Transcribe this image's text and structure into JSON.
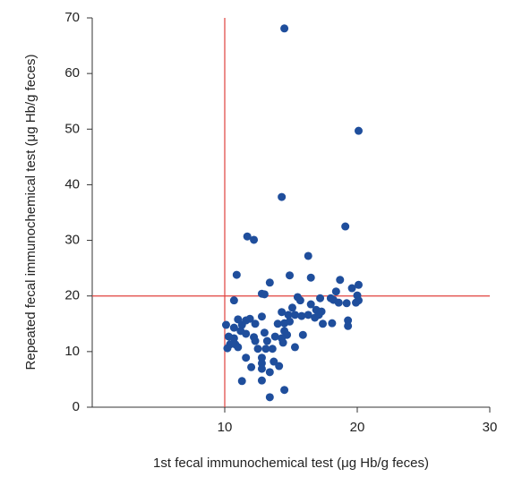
{
  "chart_data": {
    "type": "scatter",
    "xlabel": "1st fecal immunochemical test (μg Hb/g feces)",
    "ylabel": "Repeated fecal immunochemical test (μg Hb/g feces)",
    "xlim": [
      0,
      30
    ],
    "xticks": [
      10,
      20,
      30
    ],
    "ylim": [
      0,
      70
    ],
    "yticks": [
      0,
      10,
      20,
      30,
      40,
      50,
      60,
      70
    ],
    "color": "#1f4e9c",
    "reference_lines": [
      {
        "axis": "x",
        "value": 10
      },
      {
        "axis": "y",
        "value": 20
      }
    ],
    "reference_color": "#e0413c",
    "x": [
      14.5,
      20.1,
      14.3,
      19.1,
      11.7,
      12.2,
      16.3,
      10.9,
      14.9,
      16.5,
      13.4,
      18.7,
      20.1,
      19.6,
      12.8,
      13.0,
      18.4,
      20.0,
      15.5,
      15.7,
      17.2,
      10.7,
      18.0,
      18.2,
      18.6,
      19.2,
      20.1,
      19.9,
      16.5,
      16.9,
      15.1,
      14.3,
      14.8,
      15.3,
      15.8,
      16.3,
      16.8,
      17.1,
      17.3,
      11.0,
      11.6,
      11.9,
      12.8,
      10.1,
      12.3,
      11.3,
      14.0,
      14.5,
      14.9,
      19.3,
      19.3,
      18.1,
      17.4,
      10.7,
      11.2,
      11.6,
      13.0,
      14.5,
      14.7,
      15.9,
      13.8,
      10.3,
      10.7,
      12.2,
      14.3,
      13.2,
      12.3,
      10.4,
      10.8,
      11.0,
      10.2,
      12.5,
      13.1,
      13.6,
      14.4,
      15.3,
      11.6,
      12.8,
      13.7,
      12.8,
      12.0,
      14.1,
      12.8,
      13.4,
      11.3,
      12.8,
      14.5,
      13.4
    ],
    "values": [
      68.1,
      49.7,
      37.8,
      32.5,
      30.7,
      30.1,
      27.2,
      23.8,
      23.7,
      23.3,
      22.4,
      22.9,
      22.0,
      21.4,
      20.4,
      20.3,
      20.8,
      20.1,
      19.8,
      19.2,
      19.6,
      19.2,
      19.6,
      19.3,
      18.8,
      18.7,
      19.2,
      18.8,
      18.5,
      17.5,
      17.9,
      17.1,
      16.6,
      16.6,
      16.4,
      16.6,
      16.1,
      16.6,
      17.2,
      15.8,
      15.6,
      15.9,
      16.3,
      14.8,
      15.0,
      14.8,
      15.0,
      15.1,
      15.4,
      15.6,
      14.6,
      15.1,
      15.0,
      14.3,
      13.7,
      13.2,
      13.4,
      13.7,
      13.0,
      13.0,
      12.7,
      12.7,
      12.4,
      12.6,
      12.4,
      11.9,
      11.9,
      11.3,
      11.3,
      10.8,
      10.6,
      10.5,
      10.5,
      10.5,
      11.6,
      10.8,
      8.9,
      8.9,
      8.2,
      7.9,
      7.2,
      7.4,
      6.9,
      6.3,
      4.7,
      4.8,
      3.1,
      1.8
    ]
  }
}
